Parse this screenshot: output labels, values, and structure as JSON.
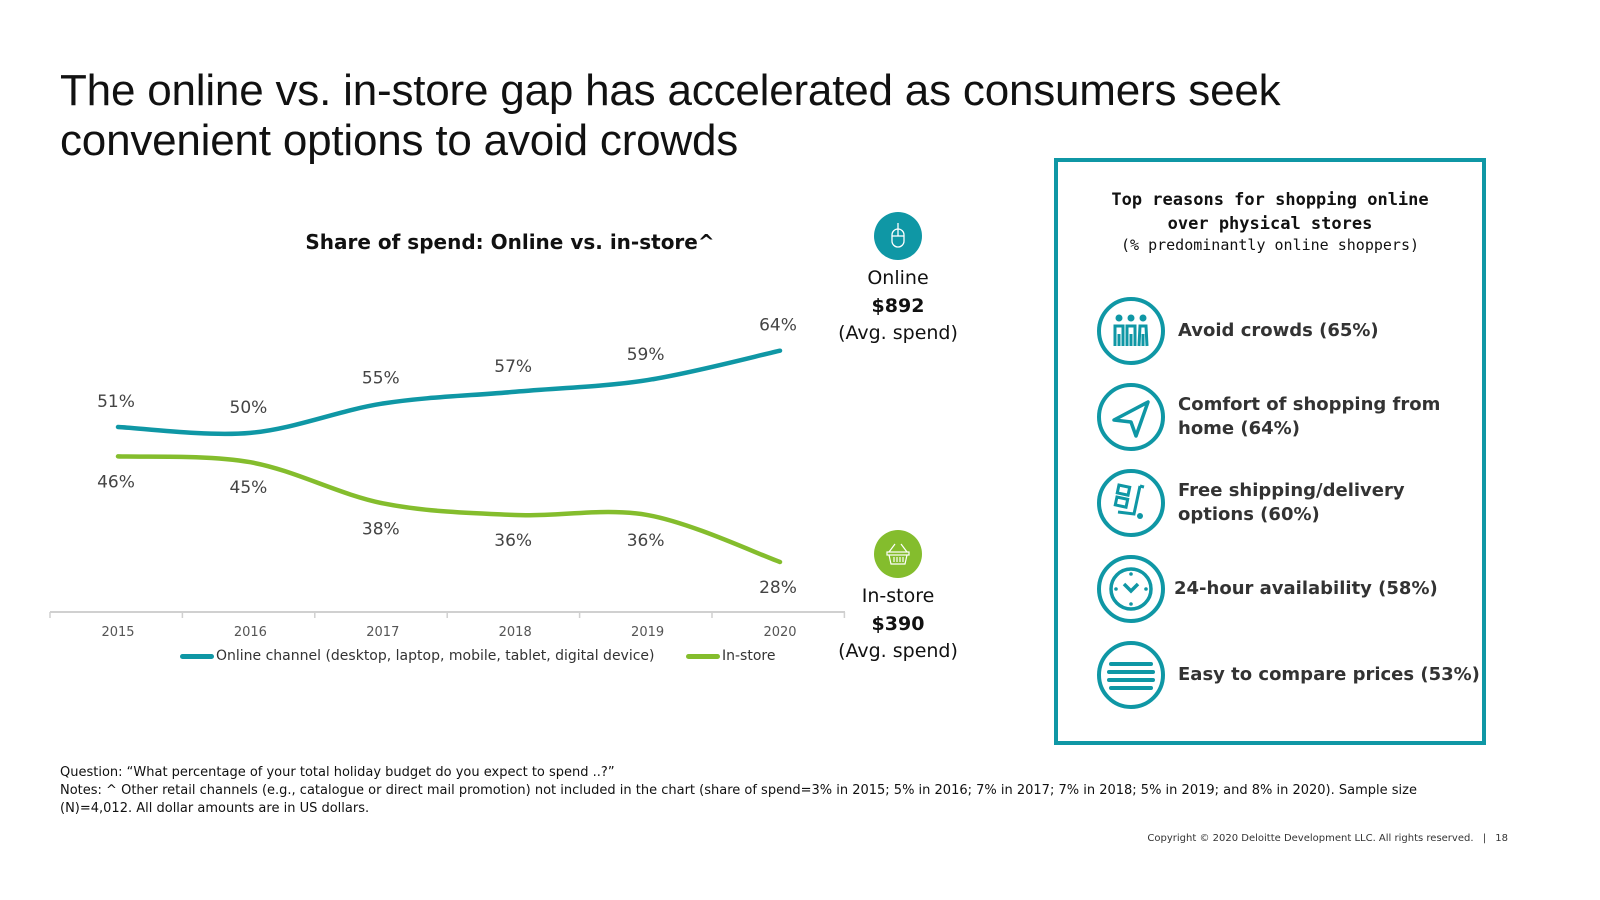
{
  "title": "The online vs. in-store gap has accelerated as consumers seek convenient options to avoid crowds",
  "colors": {
    "online": "#0f97a5",
    "instore": "#84bd2d",
    "box_border": "#0f97a5",
    "axis": "#d0d0d0",
    "label": "#444444"
  },
  "chart_data": {
    "type": "line",
    "title": "Share of spend: Online vs. in-store^",
    "xlabel": "",
    "ylabel": "",
    "categories": [
      "2015",
      "2016",
      "2017",
      "2018",
      "2019",
      "2020"
    ],
    "ylim": [
      20,
      70
    ],
    "grid": false,
    "legend_position": "bottom",
    "series": [
      {
        "name": "Online channel (desktop, laptop, mobile, tablet, digital device)",
        "values": [
          51,
          50,
          55,
          57,
          59,
          64
        ],
        "labels": [
          "51%",
          "50%",
          "55%",
          "57%",
          "59%",
          "64%"
        ],
        "color": "#0f97a5"
      },
      {
        "name": "In-store",
        "values": [
          46,
          45,
          38,
          36,
          36,
          28
        ],
        "labels": [
          "46%",
          "45%",
          "38%",
          "36%",
          "36%",
          "28%"
        ],
        "color": "#84bd2d"
      }
    ]
  },
  "spend": {
    "online": {
      "icon": "mouse-icon",
      "label": "Online",
      "amount": "$892",
      "sub": "(Avg. spend)"
    },
    "instore": {
      "icon": "basket-icon",
      "label": "In-store",
      "amount": "$390",
      "sub": "(Avg. spend)"
    }
  },
  "reasons": {
    "title": "Top reasons for shopping online over physical stores",
    "subtitle": "(% predominantly online shoppers)",
    "items": [
      {
        "icon": "crowd-icon",
        "text": "Avoid crowds (65%)",
        "value": 65
      },
      {
        "icon": "navigation-arrow-icon",
        "text": "Comfort of shopping from home (64%)",
        "value": 64
      },
      {
        "icon": "delivery-cart-icon",
        "text": "Free shipping/delivery options (60%)",
        "value": 60
      },
      {
        "icon": "clock-icon",
        "text": "24-hour availability (58%)",
        "value": 58
      },
      {
        "icon": "list-lines-icon",
        "text": "Easy to compare prices (53%)",
        "value": 53
      }
    ]
  },
  "notes": {
    "question": "Question: “What percentage of your total holiday budget do you expect to spend ..?”",
    "note": "Notes: ^ Other retail channels (e.g., catalogue or direct mail promotion) not included in the chart (share of spend=3% in 2015; 5% in 2016; 7% in 2017; 7% in 2018; 5% in 2019; and 8% in 2020). Sample size (N)=4,012. All dollar amounts are in US dollars."
  },
  "footer": {
    "copyright": "Copyright © 2020 Deloitte Development LLC. All rights reserved.",
    "separator": "|",
    "page": "18"
  }
}
